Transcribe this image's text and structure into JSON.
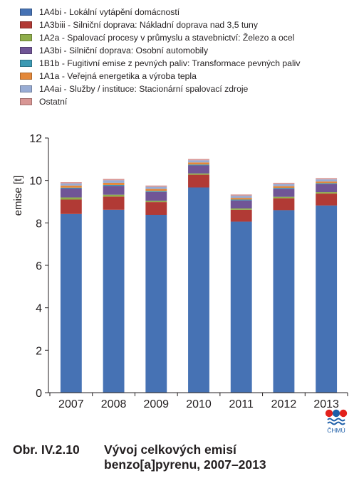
{
  "chart_data": {
    "type": "bar",
    "stacked": true,
    "categories": [
      "2007",
      "2008",
      "2009",
      "2010",
      "2011",
      "2012",
      "2013"
    ],
    "ylabel": "emise [t]",
    "xlabel": "",
    "ylim": [
      0,
      12
    ],
    "yticks": [
      "0",
      "2",
      "4",
      "6",
      "8",
      "10",
      "12"
    ],
    "grid": false,
    "legend_position": "top",
    "series": [
      {
        "name": "1A4bi - Lokální vytápění domácností",
        "color": "#4672b4",
        "values": [
          8.42,
          8.62,
          8.38,
          9.67,
          8.06,
          8.6,
          8.82
        ]
      },
      {
        "name": "1A3biii - Silniční doprava: Nákladní doprava nad 3,5 tuny",
        "color": "#b13a35",
        "values": [
          0.68,
          0.62,
          0.6,
          0.6,
          0.56,
          0.56,
          0.56
        ]
      },
      {
        "name": "1A2a - Spalovací procesy v průmyslu a stavebnictví: Železo a ocel",
        "color": "#8fae4b",
        "values": [
          0.1,
          0.09,
          0.06,
          0.06,
          0.06,
          0.07,
          0.07
        ]
      },
      {
        "name": "1A3bi - Silniční doprava: Osobní automobily",
        "color": "#705596",
        "values": [
          0.42,
          0.42,
          0.42,
          0.38,
          0.38,
          0.38,
          0.38
        ]
      },
      {
        "name": "1B1b - Fugitivní emise z pevných paliv: Transformace pevných paliv",
        "color": "#3c9ab4",
        "values": [
          0.04,
          0.04,
          0.04,
          0.04,
          0.04,
          0.04,
          0.04
        ]
      },
      {
        "name": "1A1a - Veřejná energetika a výroba tepla",
        "color": "#e3883a",
        "values": [
          0.1,
          0.1,
          0.1,
          0.1,
          0.08,
          0.08,
          0.08
        ]
      },
      {
        "name": "1A4ai - Služby / instituce: Stacionární spalovací zdroje",
        "color": "#98acd4",
        "values": [
          0.1,
          0.12,
          0.1,
          0.1,
          0.1,
          0.1,
          0.1
        ]
      },
      {
        "name": "Ostatní",
        "color": "#d89694",
        "values": [
          0.06,
          0.06,
          0.06,
          0.06,
          0.06,
          0.06,
          0.06
        ]
      }
    ]
  },
  "caption": {
    "label": "Obr. IV.2.10",
    "line1": "Vývoj celkových emisí",
    "line2": "benzo[a]pyrenu, 2007–2013"
  },
  "logo": {
    "text": "ČHMÚ",
    "colors": [
      "#e2211c",
      "#1d5ea8"
    ]
  }
}
